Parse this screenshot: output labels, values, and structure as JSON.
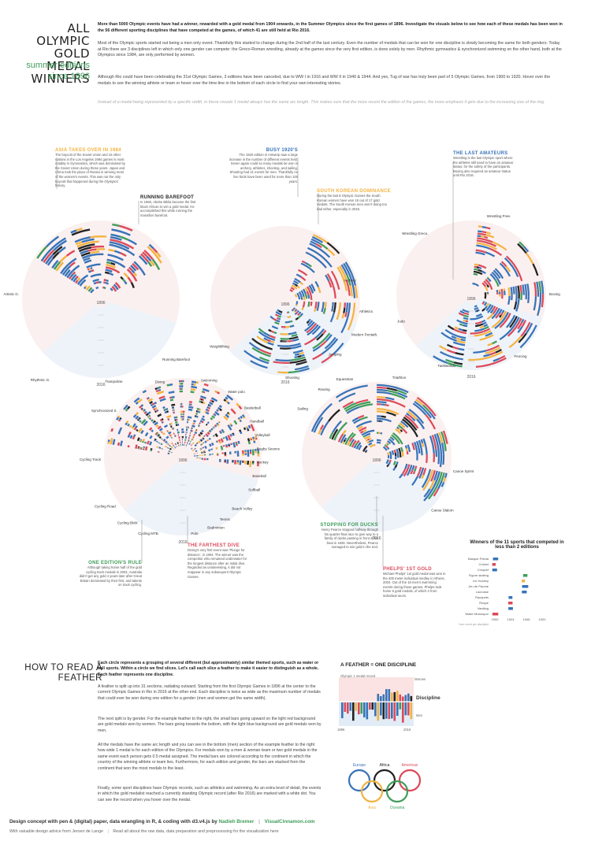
{
  "title": {
    "main": "ALL OLYMPIC GOLD MEDAL WINNERS",
    "sub": "summer editions since 1896"
  },
  "intro": [
    "More than 5000 Olympic events have had a winner, rewarded with a gold medal from 1904 onwards, in the Summer Olympics since the first games of 1896. Investigate the visuals below to see how each of these medals has been won in the 56 different sporting disciplines that have competed at the games, of which 41 are still held at Rio 2016.",
    "Most of the Olympic sports started out being a men only event. Thankfully this started to change during the 2nd half of the last century. Even the number of medals that can be won for one discipline is slowly becoming the same for both genders. Today at Rio there are 3 disciplines left in which only one gender can compete: the Greco-Roman wrestling, already at the games since the very first edition, is done solely by men. Rhythmic gymnastics & synchronized swimming on the other hand, both at the Olympics since 1984, are only performed by women.",
    "Although Rio could have been celebrating the 31st Olympic Games, 3 editions have been canceled, due to WW I in 1916 and WW II in 1940 & 1944. And yes, Tug of war has truly been part of 5 Olympic Games, from 1900 to 1920. Hover over the medals to see the winning athlete or team or hover over the time-line in the bottom of each circle to find your own interesting stories.",
    "Instead of a medal being represented by a specific width, in these visuals 1 medal always has the same arc length. This makes sure that the more recent the edition of the games, the more emphasis it gets due to the increasing size of the ring."
  ],
  "annotations": [
    {
      "title": "ASIA TAKES OVER IN 1984",
      "text": "The boycott of the Soviet Union and 15 other nations in the Los Angeles 1984 games is most notably in Gymnastics, which was dominated by the Soviet Union during those years. Japan and China took the place of Russia in winning most of the women's events. This was not the only boycott that happened during the Olympics' history."
    },
    {
      "title": "RUNNING BAREFOOT",
      "text": "In 1960, Abebe Bikila became the first black African to win a gold medal. He accomplished this while running the marathon barefoot."
    },
    {
      "title": "BUSY 1920'S",
      "text": "The 1920 edition in Antwerp saw a large increase in the number of different events held. Seven again could so many medals be won in archery, athletics, shooting, and sailing. Shooting had 21 events for men. Thankfully no live birds have been used for more than 100 years."
    },
    {
      "title": "SOUTH KOREAN DOMINANCE",
      "text": "During the last 8 Olympic Games the South Korean women have won 16 out of 17 gold medals. The South Korean men aren't doing too bad either, especially in 2016."
    },
    {
      "title": "THE LAST AMATEURS",
      "text": "Wrestling is the last Olympic sport where the athletes still need to have an amateur status, for the safety of the participants. Boxing also required an amateur status until Rio 2016."
    },
    {
      "title": "THE FARTHEST DIVE",
      "text": "Diving's very first event was 'Plunge for distance', in 1904. The winner was the competitor who remained underwater for the longest distance after an initial dive. Regarded as uninteresting, it did not reappear in any subsequent Olympic Games."
    },
    {
      "title": "ONE EDITION'S RULE",
      "text": "Although taking home half of the gold cycling track medals in 2004, Australia didn't get any gold 4 years later after Great Britain dominated by their first, and talents on track cycling."
    },
    {
      "title": "STOPPING FOR DUCKS",
      "text": "Henry Pearce stopped halfway through his quarter-final race to give way to a family of ducks passing in front of his boat in 1928. Nevertheless, Pearce managed to win gold in the end."
    },
    {
      "title": "PHELPS' 1ST GOLD",
      "text": "Michael Phelps' 1st gold medal was won in the 400 meter individual medley in Athens, 2004. Out of the 16 men's swimming events during those games, Phelps took home 6 gold medals, of which 4 from individual races."
    }
  ],
  "wheels": [
    {
      "labels": [
        "Artistic G.",
        "Rhythmic G.",
        "Trampoline",
        "Running Barefoot"
      ],
      "year_start": "1896",
      "year_end": "2016"
    },
    {
      "labels": [
        "Archery",
        "Athletics",
        "Modern Pentath.",
        "Weightlifting",
        "Jumping",
        "Shooting"
      ],
      "year_start": "1896",
      "year_end": "2016"
    },
    {
      "labels": [
        "Wrestling Free.",
        "Wrestling Greco.",
        "Boxing",
        "Judo",
        "Taekwondo",
        "Fencing"
      ],
      "year_start": "1896",
      "year_end": "2016"
    },
    {
      "labels": [
        "Synchronized S.",
        "Diving",
        "Swimming",
        "Water polo",
        "Basketball",
        "Handball",
        "Volleyball",
        "Rugby Sevens",
        "Hockey",
        "Baseball",
        "Softball",
        "Cycling Track",
        "Cycling Road",
        "Cycling BMX",
        "Cycling MTB",
        "Beach Volley",
        "Tennis",
        "Badminton",
        "Polo"
      ],
      "year_start": "1896",
      "year_end": "2016"
    },
    {
      "labels": [
        "Sailing",
        "Rowing",
        "Canoe Sprint",
        "Canoe Slalom",
        "Equestrian",
        "Triathlon"
      ],
      "year_start": "1896",
      "year_end": "2016"
    }
  ],
  "small_chart": {
    "title": "Winners of the 11 sports that competed in less than 2 editions",
    "sports": [
      "Basque Pelota",
      "Cricket",
      "Croquet",
      "Figure skating",
      "Ice Hockey",
      "Jeu de Paume",
      "Lacrosse",
      "Racquets",
      "Roque",
      "Vaulting",
      "Water Motorspor"
    ],
    "years": [
      "1900",
      "1924",
      "1948",
      "1920"
    ],
    "note": "*one event per discipline"
  },
  "howto": {
    "title": "HOW TO READ A FEATHER",
    "paragraphs": [
      "Each circle represents a grouping of several different (but approximately) similar themed sports, such as water or ball sports. Within a circle we find slices. Let's call each slice a feather to make it easier to distinguish as a whole. Each feather represents one discipline.",
      "A feather is split up into 31 sections, radiating outward. Starting from the first Olympic Games in 1896 at the center to the current Olympic Games in Rio in 2016 at the other end. Each discipline is twice as wide as the maximum number of medals that could ever be won during one edition for a gender (men and women get the same width).",
      "The next split is by gender. For the example feather to the right, the small bars going upward on the light red background are gold medals won by women. The bars going towards the bottom, with the light blue background are gold medals won by men.",
      "All the medals have the same arc length and you can see in the bottom (men) section of the example feather to the right how wide 1 medal is for each edition of the Olympics. For medals won by a men & woman team or two gold medals in the same event each person gets 0.5 medal assigned. The medal bars are colored according to the continent in which the country of the winning athlete or team lies. Furthermore, for each edition and gender, the bars are stacked from the continent that won the most medals to the least.",
      "Finally, some sport disciplines have Olympic records, such as athletics and swimming. As an extra level of detail, the events in which the gold medalist reached a currently standing Olympic record (after Rio 2016) are marked with a white dot. You can see the record when you hover over the medal."
    ],
    "feather_title": "A FEATHER = ONE DISCIPLINE",
    "feather_record": "Olympic 1 medal record",
    "feather_women": "Women",
    "feather_men": "Men",
    "feather_label": "Discipline",
    "feather_start": "1896",
    "feather_end": "2016",
    "continents": [
      "Europe",
      "Africa",
      "Americas",
      "Asia",
      "Oceania"
    ]
  },
  "colors": {
    "Europe": "#3873b8",
    "Africa": "#222222",
    "Americas": "#dc4a5a",
    "Asia": "#f3b341",
    "Oceania": "#3f9d5a",
    "women_bg": "#fbe3e3",
    "men_bg": "#e1ecf6"
  },
  "footer": {
    "line1_prefix": "Design concept with pen & (digital) paper, data wrangling in R, & coding with d3.v4.js by",
    "author": "Nadieh Bremer",
    "site": "VisualCinnamon.com",
    "line2a": "With valuable design advice from Jeroen de Lange",
    "line2b": "Read all about the raw data, data preparation and preprocessing for the visualization here"
  },
  "chart_data": {
    "type": "radial",
    "title": "ALL OLYMPIC GOLD MEDAL WINNERS",
    "subtitle": "summer editions since 1896",
    "circles": 5,
    "editions_range": [
      "1896",
      "2016"
    ],
    "legend": [
      "Europe",
      "Africa",
      "Americas",
      "Asia",
      "Oceania"
    ]
  }
}
